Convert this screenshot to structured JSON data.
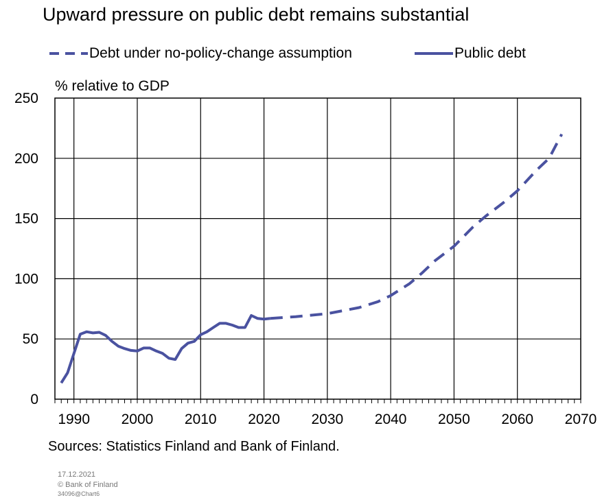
{
  "chart_data": {
    "type": "line",
    "title": "Upward pressure on public debt remains substantial",
    "ylabel": "% relative to GDP",
    "xlim": [
      1987,
      2070
    ],
    "ylim": [
      0,
      250
    ],
    "xticks": [
      1990,
      2000,
      2010,
      2020,
      2030,
      2040,
      2050,
      2060,
      2070
    ],
    "yticks": [
      0,
      50,
      100,
      150,
      200,
      250
    ],
    "grid": true,
    "legend_position": "top",
    "series": [
      {
        "name": "Debt under no-policy-change assumption",
        "style": "dashed",
        "color": "#4a52a0",
        "points": [
          [
            2021,
            67
          ],
          [
            2025,
            68.5
          ],
          [
            2030,
            71
          ],
          [
            2035,
            76
          ],
          [
            2038,
            81
          ],
          [
            2040,
            86
          ],
          [
            2043,
            96
          ],
          [
            2045,
            105
          ],
          [
            2047,
            115
          ],
          [
            2050,
            127
          ],
          [
            2053,
            143
          ],
          [
            2055,
            152
          ],
          [
            2058,
            164
          ],
          [
            2060,
            173
          ],
          [
            2063,
            190
          ],
          [
            2065,
            200
          ],
          [
            2067,
            220
          ]
        ]
      },
      {
        "name": "Public debt",
        "style": "solid",
        "color": "#4a52a0",
        "points": [
          [
            1988,
            13.5
          ],
          [
            1989,
            22
          ],
          [
            1990,
            38
          ],
          [
            1991,
            54
          ],
          [
            1992,
            56
          ],
          [
            1993,
            55
          ],
          [
            1994,
            55.5
          ],
          [
            1995,
            53
          ],
          [
            1996,
            48
          ],
          [
            1997,
            44
          ],
          [
            1998,
            42
          ],
          [
            1999,
            40.5
          ],
          [
            2000,
            40
          ],
          [
            2001,
            42.5
          ],
          [
            2002,
            42.5
          ],
          [
            2003,
            40
          ],
          [
            2004,
            38
          ],
          [
            2005,
            34
          ],
          [
            2006,
            33
          ],
          [
            2007,
            42
          ],
          [
            2008,
            46.5
          ],
          [
            2009,
            48
          ],
          [
            2010,
            53.5
          ],
          [
            2011,
            56
          ],
          [
            2012,
            59.5
          ],
          [
            2013,
            63
          ],
          [
            2014,
            63
          ],
          [
            2015,
            61.5
          ],
          [
            2016,
            59.5
          ],
          [
            2017,
            59.5
          ],
          [
            2018,
            69.5
          ],
          [
            2019,
            67
          ],
          [
            2020,
            66.5
          ],
          [
            2021,
            67
          ]
        ]
      }
    ]
  },
  "source_text": "Sources: Statistics Finland and Bank of Finland.",
  "footer": {
    "date": "17.12.2021",
    "copyright": "© Bank of Finland",
    "chart_id": "34096@Chart6"
  }
}
